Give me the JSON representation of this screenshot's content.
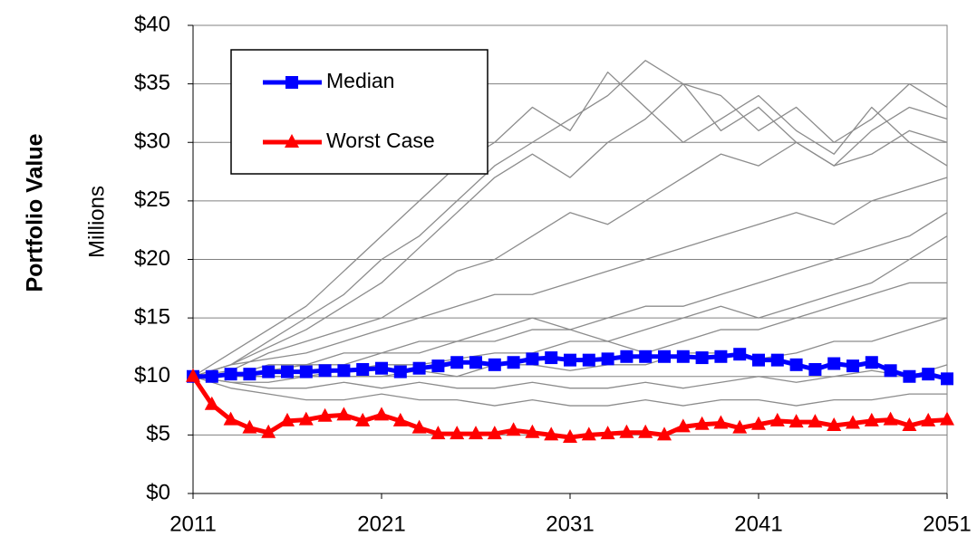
{
  "chart_data": {
    "type": "line",
    "ylabel": "Portfolio Value",
    "yunit": "Millions",
    "x": [
      2011,
      2012,
      2013,
      2014,
      2015,
      2016,
      2017,
      2018,
      2019,
      2020,
      2021,
      2022,
      2023,
      2024,
      2025,
      2026,
      2027,
      2028,
      2029,
      2030,
      2031,
      2032,
      2033,
      2034,
      2035,
      2036,
      2037,
      2038,
      2039,
      2040,
      2041,
      2042,
      2043,
      2044,
      2045,
      2046,
      2047,
      2048,
      2049,
      2050,
      2051
    ],
    "xlim": [
      2011,
      2051
    ],
    "xticks": [
      2011,
      2021,
      2031,
      2041,
      2051
    ],
    "ylim": [
      0,
      40
    ],
    "yticks": [
      {
        "value": 0,
        "label": "$0"
      },
      {
        "value": 5,
        "label": "$5"
      },
      {
        "value": 10,
        "label": "$10"
      },
      {
        "value": 15,
        "label": "$15"
      },
      {
        "value": 20,
        "label": "$20"
      },
      {
        "value": 25,
        "label": "$25"
      },
      {
        "value": 30,
        "label": "$30"
      },
      {
        "value": 35,
        "label": "$35"
      },
      {
        "value": 40,
        "label": "$40"
      }
    ],
    "grid": true,
    "legend": "upper left",
    "series": [
      {
        "name": "Median",
        "color": "#0000ff",
        "marker": "square",
        "values": [
          10,
          10,
          10.2,
          10.2,
          10.4,
          10.4,
          10.4,
          10.5,
          10.5,
          10.6,
          10.7,
          10.4,
          10.7,
          10.9,
          11.2,
          11.2,
          11,
          11.2,
          11.5,
          11.6,
          11.4,
          11.4,
          11.5,
          11.7,
          11.7,
          11.7,
          11.7,
          11.6,
          11.7,
          11.9,
          11.4,
          11.4,
          11,
          10.6,
          11.1,
          10.9,
          11.2,
          10.5,
          10,
          10.2,
          9.8
        ]
      },
      {
        "name": "Worst Case",
        "color": "#ff0000",
        "marker": "triangle",
        "values": [
          10,
          7.6,
          6.3,
          5.6,
          5.2,
          6.2,
          6.3,
          6.6,
          6.7,
          6.2,
          6.7,
          6.2,
          5.6,
          5.1,
          5.1,
          5.1,
          5.1,
          5.4,
          5.2,
          5,
          4.8,
          5,
          5.1,
          5.2,
          5.2,
          5,
          5.7,
          5.9,
          6,
          5.6,
          5.9,
          6.2,
          6.1,
          6.1,
          5.8,
          6,
          6.2,
          6.3,
          5.8,
          6.2,
          6.3
        ]
      }
    ],
    "simulations": {
      "color": "#8c8c8c",
      "x": [
        2011,
        2013,
        2015,
        2017,
        2019,
        2021,
        2023,
        2025,
        2027,
        2029,
        2031,
        2033,
        2035,
        2037,
        2039,
        2041,
        2043,
        2045,
        2047,
        2049,
        2051
      ],
      "paths": [
        [
          10,
          11,
          12.5,
          14,
          16,
          18,
          21,
          24,
          27,
          29,
          27,
          30,
          32,
          35,
          34,
          31,
          33,
          30,
          32,
          35,
          33
        ],
        [
          10,
          10.5,
          12,
          13,
          14,
          15,
          17,
          19,
          20,
          22,
          24,
          23,
          25,
          27,
          29,
          28,
          30,
          28,
          29,
          31,
          30
        ],
        [
          10,
          11,
          11.5,
          12,
          13,
          14,
          15,
          16,
          17,
          17,
          18,
          19,
          20,
          21,
          22,
          23,
          24,
          23,
          25,
          26,
          27
        ],
        [
          10,
          10,
          11,
          11,
          12,
          12,
          13,
          13,
          14,
          15,
          14,
          15,
          16,
          16,
          17,
          18,
          19,
          20,
          21,
          22,
          24
        ],
        [
          10,
          10,
          10.5,
          11,
          11,
          12,
          12,
          13,
          13,
          14,
          14,
          13,
          14,
          15,
          16,
          15,
          16,
          17,
          18,
          20,
          22
        ],
        [
          10,
          10,
          10,
          10,
          10.5,
          11,
          11,
          11.5,
          12,
          12,
          13,
          13,
          12,
          13,
          14,
          14,
          15,
          16,
          17,
          18,
          18
        ],
        [
          10,
          9.5,
          9.5,
          10,
          10,
          10,
          10.5,
          10,
          11,
          11,
          10.5,
          11,
          11,
          12,
          12,
          11.5,
          12,
          13,
          13,
          14,
          15
        ],
        [
          10,
          9.5,
          9,
          9,
          9.5,
          9,
          9.5,
          9,
          9,
          9.5,
          9,
          9,
          9.5,
          9,
          9.5,
          10,
          9.5,
          10,
          10.5,
          10,
          11
        ],
        [
          10,
          9,
          8.5,
          8,
          8,
          8.5,
          8,
          8,
          7.5,
          8,
          7.5,
          7.5,
          8,
          7.5,
          8,
          8,
          7.5,
          8,
          8,
          8.5,
          8.5
        ],
        [
          10,
          12,
          14,
          16,
          19,
          22,
          25,
          28,
          30,
          33,
          31,
          36,
          33,
          30,
          32,
          34,
          31,
          29,
          33,
          30,
          28
        ],
        [
          10,
          11,
          13,
          15,
          17,
          20,
          22,
          25,
          28,
          30,
          32,
          34,
          37,
          35,
          31,
          33,
          30,
          28,
          31,
          33,
          32
        ]
      ]
    }
  }
}
